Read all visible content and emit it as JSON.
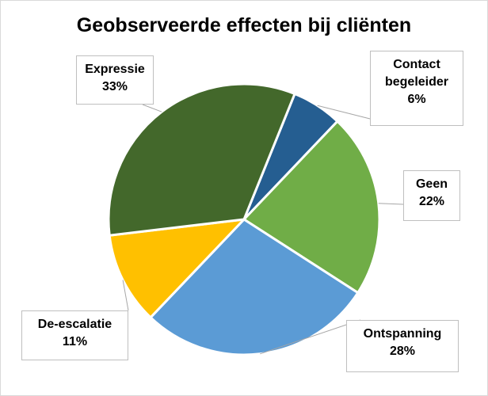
{
  "chart_data": {
    "type": "pie",
    "title": "Geobserveerde effecten bij cliënten",
    "slices": [
      {
        "name": "Contact begeleider",
        "name_lines": [
          "Contact",
          "begeleider"
        ],
        "value": 6,
        "label": "6%",
        "color": "#255e91"
      },
      {
        "name": "Geen",
        "name_lines": [
          "Geen"
        ],
        "value": 22,
        "label": "22%",
        "color": "#70ad47"
      },
      {
        "name": "Ontspanning",
        "name_lines": [
          "Ontspanning"
        ],
        "value": 28,
        "label": "28%",
        "color": "#5b9bd5"
      },
      {
        "name": "De-escalatie",
        "name_lines": [
          "De-escalatie"
        ],
        "value": 11,
        "label": "11%",
        "color": "#ffc000"
      },
      {
        "name": "Expressie",
        "name_lines": [
          "Expressie"
        ],
        "value": 33,
        "label": "33%",
        "color": "#43682b"
      }
    ]
  }
}
